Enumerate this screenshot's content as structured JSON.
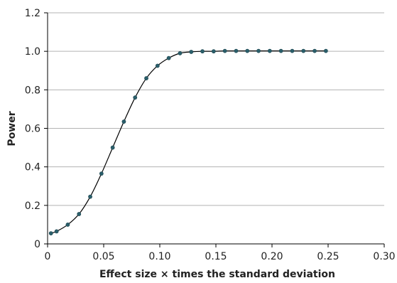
{
  "chart_data": {
    "type": "scatter",
    "title": "",
    "xlabel": "Effect size × times the standard deviation",
    "ylabel": "Power",
    "xlim": [
      0,
      0.3
    ],
    "ylim": [
      0,
      1.2
    ],
    "xticks": [
      "0",
      "0.05",
      "0.10",
      "0.15",
      "0.20",
      "0.25",
      "0.30"
    ],
    "xtick_values": [
      0,
      0.05,
      0.1,
      0.15,
      0.2,
      0.25,
      0.3
    ],
    "yticks": [
      "0",
      "0.2",
      "0.4",
      "0.6",
      "0.8",
      "1.0",
      "1.2"
    ],
    "ytick_values": [
      0,
      0.2,
      0.4,
      0.6,
      0.8,
      1.0,
      1.2
    ],
    "grid": "horizontal",
    "legend": "none",
    "colors": {
      "marker": "#2b5f6b",
      "line": "#000000",
      "grid": "#b3b3b3",
      "axis": "#000000"
    },
    "series": [
      {
        "marker": "dot",
        "line": "smooth",
        "x": [
          0.003,
          0.008,
          0.018,
          0.028,
          0.038,
          0.048,
          0.058,
          0.068,
          0.078,
          0.088,
          0.098,
          0.108,
          0.118,
          0.128,
          0.138,
          0.148,
          0.158,
          0.168,
          0.178,
          0.188,
          0.198,
          0.208,
          0.218,
          0.228,
          0.238,
          0.248
        ],
        "y": [
          0.055,
          0.065,
          0.1,
          0.155,
          0.245,
          0.365,
          0.5,
          0.635,
          0.76,
          0.86,
          0.925,
          0.965,
          0.99,
          0.997,
          1.0,
          1.0,
          1.002,
          1.002,
          1.002,
          1.002,
          1.002,
          1.002,
          1.002,
          1.002,
          1.002,
          1.002
        ]
      }
    ]
  }
}
